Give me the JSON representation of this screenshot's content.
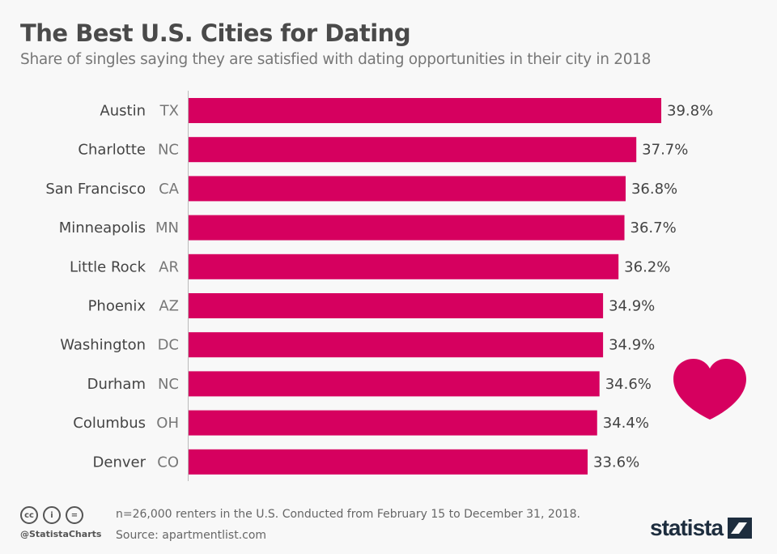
{
  "title": "The Best U.S. Cities for Dating",
  "subtitle": "Share of singles saying they are satisfied with dating opportunities in their city in 2018",
  "colors": {
    "bar": "#d6005f",
    "heart": "#d6005f",
    "text": "#444444",
    "background": "#f8f8f8",
    "logo": "#1d2d3e"
  },
  "chart_data": {
    "type": "bar",
    "orientation": "horizontal",
    "categories": [
      "Austin",
      "Charlotte",
      "San Francisco",
      "Minneapolis",
      "Little Rock",
      "Phoenix",
      "Washington",
      "Durham",
      "Columbus",
      "Denver"
    ],
    "states": [
      "TX",
      "NC",
      "CA",
      "MN",
      "AR",
      "AZ",
      "DC",
      "NC",
      "OH",
      "CO"
    ],
    "values": [
      39.8,
      37.7,
      36.8,
      36.7,
      36.2,
      34.9,
      34.9,
      34.6,
      34.4,
      33.6
    ],
    "labels": [
      "39.8%",
      "37.7%",
      "36.8%",
      "36.7%",
      "36.2%",
      "34.9%",
      "34.9%",
      "34.6%",
      "34.4%",
      "33.6%"
    ],
    "unit": "%",
    "xlim": [
      0,
      39.8
    ],
    "grid": false
  },
  "decoration": {
    "icon": "heart-icon"
  },
  "footer": {
    "note": "n=26,000 renters in the U.S. Conducted from February 15 to December 31, 2018.",
    "source": "Source: apartmentlist.com",
    "handle": "@StatistaCharts",
    "license_icons": [
      "cc-icon",
      "by-icon",
      "nd-icon"
    ],
    "license_glyphs": [
      "cc",
      "i",
      "="
    ],
    "logo": "statista"
  }
}
